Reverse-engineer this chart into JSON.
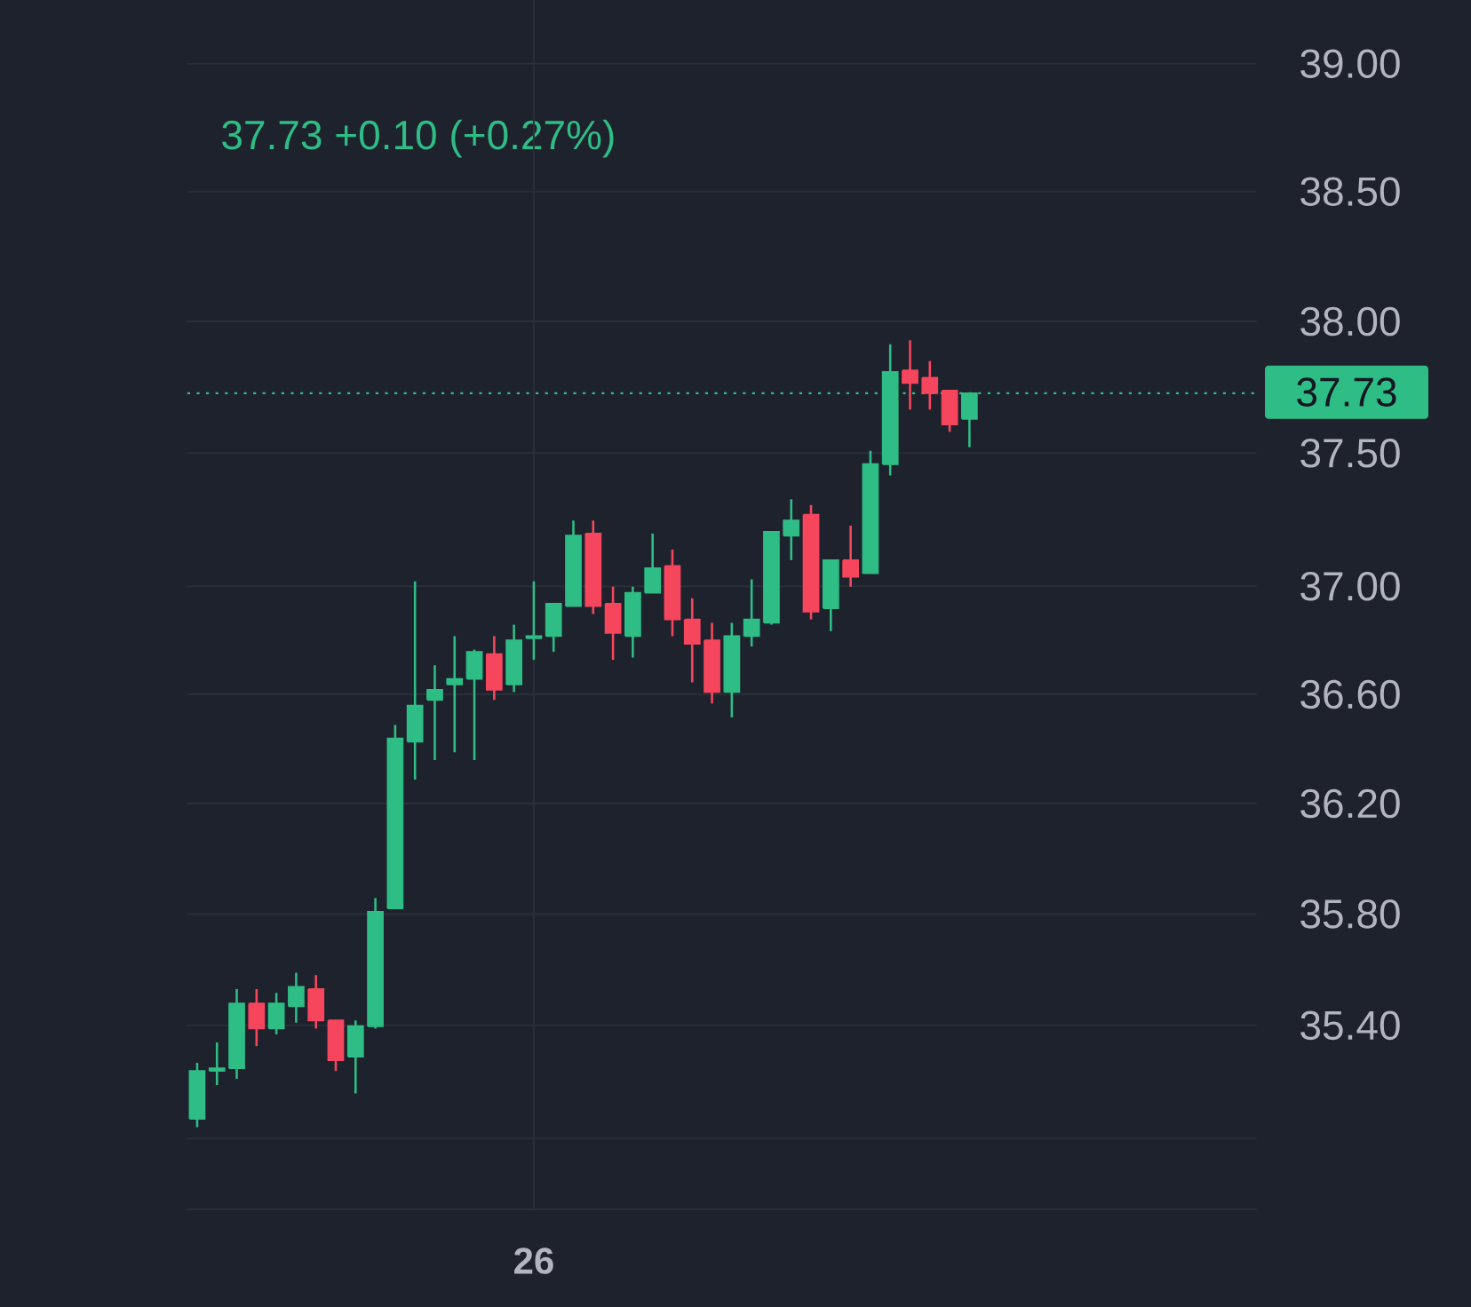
{
  "chart_data": {
    "type": "candlestick",
    "subtitle": "37.73 +0.10 (+0.27%)",
    "categories": [
      null,
      null,
      null,
      null,
      null,
      null,
      null,
      null,
      null,
      null,
      null,
      null,
      null,
      null,
      null,
      null,
      null,
      "26",
      null,
      null,
      null,
      null,
      null,
      null,
      null,
      null,
      null,
      null,
      null,
      null,
      null,
      null,
      null,
      null,
      null,
      null,
      null,
      null,
      null,
      null,
      null,
      null,
      null,
      null,
      null,
      null,
      null,
      null,
      null,
      null,
      null,
      null,
      null,
      null
    ],
    "ohlc": [
      [
        35.07,
        35.27,
        35.04,
        35.24
      ],
      [
        35.24,
        35.34,
        35.19,
        35.25
      ],
      [
        35.25,
        35.53,
        35.21,
        35.48
      ],
      [
        35.48,
        35.53,
        35.33,
        35.39
      ],
      [
        35.39,
        35.52,
        35.37,
        35.48
      ],
      [
        35.47,
        35.59,
        35.41,
        35.54
      ],
      [
        35.53,
        35.58,
        35.39,
        35.42
      ],
      [
        35.42,
        35.42,
        35.24,
        35.28
      ],
      [
        35.29,
        35.42,
        35.16,
        35.4
      ],
      [
        35.4,
        35.86,
        35.39,
        35.81
      ],
      [
        35.82,
        36.49,
        35.82,
        36.44
      ],
      [
        36.43,
        37.02,
        36.29,
        36.56
      ],
      [
        36.58,
        36.71,
        36.36,
        36.62
      ],
      [
        36.64,
        36.82,
        36.39,
        36.66
      ],
      [
        36.66,
        36.77,
        36.36,
        36.76
      ],
      [
        36.75,
        36.82,
        36.58,
        36.62
      ],
      [
        36.64,
        36.86,
        36.61,
        36.8
      ],
      [
        36.81,
        37.02,
        36.73,
        36.82
      ],
      [
        36.82,
        36.94,
        36.76,
        36.94
      ],
      [
        36.93,
        37.25,
        36.93,
        37.19
      ],
      [
        37.2,
        37.25,
        36.9,
        36.93
      ],
      [
        36.94,
        37.0,
        36.73,
        36.83
      ],
      [
        36.82,
        37.0,
        36.74,
        36.98
      ],
      [
        36.98,
        37.2,
        36.98,
        37.07
      ],
      [
        37.08,
        37.14,
        36.82,
        36.88
      ],
      [
        36.88,
        36.96,
        36.65,
        36.79
      ],
      [
        36.8,
        36.87,
        36.57,
        36.61
      ],
      [
        36.61,
        36.87,
        36.52,
        36.82
      ],
      [
        36.82,
        37.03,
        36.78,
        36.88
      ],
      [
        36.87,
        37.21,
        36.86,
        37.21
      ],
      [
        37.19,
        37.33,
        37.1,
        37.25
      ],
      [
        37.27,
        37.31,
        36.88,
        36.91
      ],
      [
        36.92,
        37.1,
        36.84,
        37.1
      ],
      [
        37.1,
        37.23,
        37.0,
        37.04
      ],
      [
        37.05,
        37.51,
        37.05,
        37.46
      ],
      [
        37.46,
        37.92,
        37.42,
        37.81
      ],
      [
        37.82,
        37.93,
        37.67,
        37.77
      ],
      [
        37.79,
        37.85,
        37.67,
        37.73
      ],
      [
        37.74,
        37.74,
        37.58,
        37.61
      ],
      [
        37.63,
        37.73,
        37.53,
        37.73
      ],
      null,
      null,
      null,
      null,
      null,
      null,
      null,
      null,
      null,
      null,
      null,
      null,
      null,
      null
    ],
    "colors": [
      "#2ebd85",
      "#2ebd85",
      "#2ebd85",
      "#f6465d",
      "#2ebd85",
      "#2ebd85",
      "#f6465d",
      "#f6465d",
      "#2ebd85",
      "#2ebd85",
      "#2ebd85",
      "#2ebd85",
      "#2ebd85",
      "#2ebd85",
      "#2ebd85",
      "#f6465d",
      "#2ebd85",
      "#2ebd85",
      "#2ebd85",
      "#2ebd85",
      "#f6465d",
      "#f6465d",
      "#2ebd85",
      "#2ebd85",
      "#f6465d",
      "#f6465d",
      "#f6465d",
      "#2ebd85",
      "#2ebd85",
      "#2ebd85",
      "#2ebd85",
      "#f6465d",
      "#2ebd85",
      "#f6465d",
      "#2ebd85",
      "#2ebd85",
      "#f6465d",
      "#f6465d",
      "#f6465d",
      "#2ebd85",
      null,
      null,
      null,
      null,
      null,
      null,
      null,
      null,
      null,
      null,
      null,
      null,
      null,
      null
    ],
    "ylim": [
      34.75,
      39.25
    ],
    "yticks": [
      {
        "value": 35,
        "label": null
      },
      {
        "value": 35.4,
        "label": "35.40"
      },
      {
        "value": 35.8,
        "label": "35.80"
      },
      {
        "value": 36.2,
        "label": "36.20"
      },
      {
        "value": 36.6,
        "label": "36.60"
      },
      {
        "value": 37,
        "label": "37.00"
      },
      {
        "value": 37.5,
        "label": "37.50"
      },
      {
        "value": 38,
        "label": "38.00"
      },
      {
        "value": 38.5,
        "label": "38.50"
      },
      {
        "value": 39,
        "label": "39.00"
      }
    ],
    "log": true,
    "grid": true,
    "ref_lines": [
      {
        "axis": "y",
        "value": 37.73,
        "label": "37.73",
        "color": "#2ebd85",
        "line_style": "dotted"
      }
    ]
  }
}
